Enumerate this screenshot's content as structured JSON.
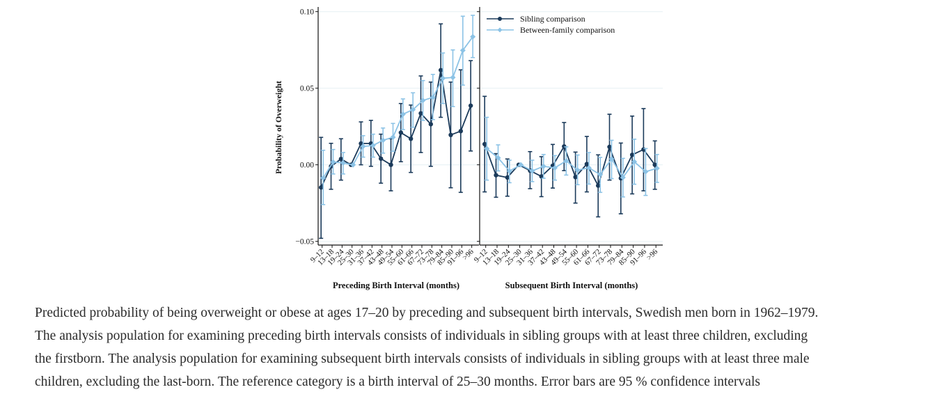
{
  "chart_data": {
    "type": "line",
    "ylabel": "Probability of Overweight",
    "ylim": [
      -0.05,
      0.1
    ],
    "yticks": [
      -0.05,
      0.0,
      0.05,
      0.1
    ],
    "ytick_labels": [
      "−0.05",
      "0.00",
      "0.05",
      "0.10"
    ],
    "grid": "horizontal",
    "legend_position": "top-right",
    "categories": [
      "9–12",
      "13–18",
      "19–24",
      "25–30",
      "31–36",
      "37–42",
      "43–48",
      "49–54",
      "55–60",
      "61–66",
      "67–72",
      "73–78",
      "79–84",
      "85–90",
      "91–96",
      ">96"
    ],
    "series_meta": [
      {
        "name": "Sibling comparison",
        "color": "#1b3a5a",
        "marker": "circle"
      },
      {
        "name": "Between-family comparison",
        "color": "#8cc3e6",
        "marker": "diamond"
      }
    ],
    "panels": [
      {
        "xlabel": "Preceding Birth Interval (months)",
        "series": [
          {
            "name": "Sibling comparison",
            "values": [
              -0.0148,
              -0.001,
              0.0038,
              0,
              0.0139,
              0.0139,
              0.004,
              0,
              0.021,
              0.017,
              0.0336,
              0.0265,
              0.0618,
              0.0195,
              0.022,
              0.0386
            ],
            "ci_high": [
              0.0179,
              0.014,
              0.017,
              0,
              0.028,
              0.029,
              0.02,
              0.017,
              0.04,
              0.039,
              0.058,
              0.054,
              0.092,
              0.054,
              0.062,
              0.068
            ],
            "ci_low": [
              -0.048,
              -0.016,
              -0.01,
              0,
              0,
              -0.001,
              -0.012,
              -0.017,
              0.002,
              -0.005,
              0.008,
              -0.001,
              0.031,
              -0.015,
              -0.018,
              0.009
            ]
          },
          {
            "name": "Between-family comparison",
            "values": [
              -0.0086,
              0.0018,
              0.0012,
              0,
              0.012,
              0.0126,
              0.016,
              0.018,
              0.033,
              0.036,
              0.042,
              0.044,
              0.0565,
              0.057,
              0.0747,
              0.0836
            ],
            "ci_high": [
              0.0095,
              0.01,
              0.008,
              0,
              0.019,
              0.02,
              0.024,
              0.027,
              0.043,
              0.047,
              0.055,
              0.059,
              0.073,
              0.075,
              0.097,
              0.0976
            ],
            "ci_low": [
              -0.026,
              -0.006,
              -0.006,
              0,
              0.005,
              0.005,
              0.0076,
              0.0088,
              0.023,
              0.0245,
              0.029,
              0.0295,
              0.04,
              0.038,
              0.052,
              0.07
            ]
          }
        ]
      },
      {
        "xlabel": "Subsequent Birth Interval (months)",
        "series": [
          {
            "name": "Sibling comparison",
            "values": [
              0.0135,
              -0.0068,
              -0.0083,
              0,
              -0.0038,
              -0.0076,
              -0.0006,
              0.012,
              -0.008,
              0.0005,
              -0.0136,
              0.0117,
              -0.0088,
              0.0065,
              0.01,
              0
            ],
            "ci_high": [
              0.0447,
              0.0073,
              0.0038,
              0,
              0.0086,
              0.0053,
              0.0133,
              0.0276,
              0.0083,
              0.0185,
              0.0065,
              0.033,
              0.0142,
              0.0318,
              0.0367,
              0.0156
            ],
            "ci_low": [
              -0.0177,
              -0.0212,
              -0.0205,
              0,
              -0.0156,
              -0.0208,
              -0.0152,
              -0.0038,
              -0.025,
              -0.0177,
              -0.034,
              -0.01,
              -0.032,
              -0.019,
              -0.017,
              -0.016
            ]
          },
          {
            "name": "Between-family comparison",
            "values": [
              0.0106,
              0.0045,
              -0.0041,
              0,
              -0.004,
              -0.001,
              -0.002,
              0.0026,
              -0.0035,
              -0.002,
              -0.0064,
              0.0038,
              -0.0083,
              0.002,
              -0.0045,
              -0.0023
            ],
            "ci_high": [
              0.031,
              0.013,
              0.003,
              0,
              0.003,
              0.0067,
              0.006,
              0.0117,
              0.0064,
              0.008,
              0.0048,
              0.016,
              0.0042,
              0.0167,
              0.0106,
              0.0067
            ],
            "ci_low": [
              -0.01,
              -0.004,
              -0.0117,
              0,
              -0.011,
              -0.0088,
              -0.01,
              -0.0067,
              -0.013,
              -0.0126,
              -0.018,
              -0.009,
              -0.021,
              -0.0127,
              -0.02,
              -0.0115
            ]
          }
        ]
      }
    ]
  },
  "caption": {
    "lines": [
      "Predicted probability of being overweight or obese at ages 17–20 by preceding and subsequent birth intervals, Swedish men born in 1962–1979.",
      "The analysis population for examining preceding birth intervals consists of individuals in sibling groups with at least three children, excluding",
      "the firstborn. The analysis population for examining subsequent birth intervals consists of individuals in sibling groups with at least three male",
      "children, excluding the last-born. The reference category is a birth interval of 25–30 months. Error bars are 95 % confidence intervals"
    ]
  }
}
